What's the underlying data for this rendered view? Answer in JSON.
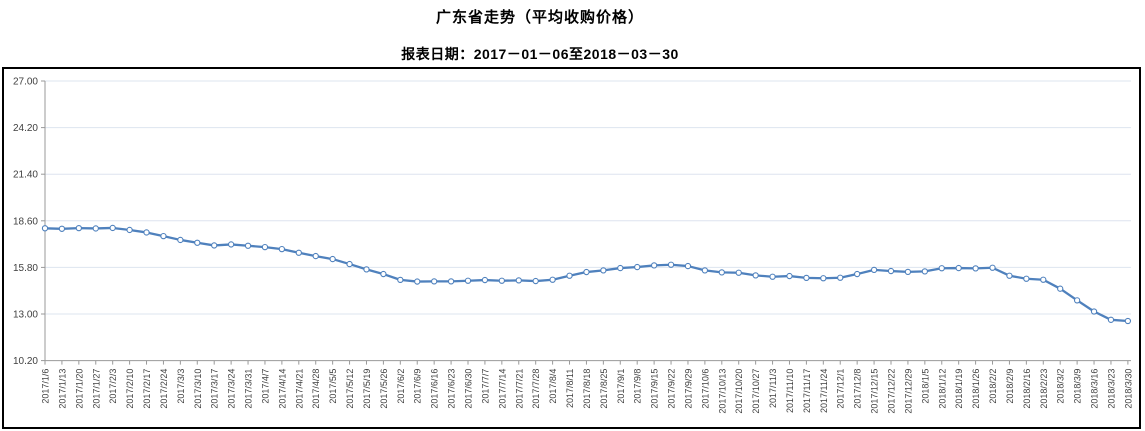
{
  "page": {
    "title": "广东省走势（平均收购价格）",
    "subtitle": "报表日期：2017－01－06至2018－03－30"
  },
  "chart_data": {
    "type": "line",
    "title": "广东省走势（平均收购价格）",
    "subtitle": "报表日期：2017－01－06至2018－03－30",
    "xlabel": "",
    "ylabel": "",
    "legend": "none",
    "grid": true,
    "ylim": [
      10.2,
      27.0
    ],
    "ytick_labels": [
      "27.00",
      "24.20",
      "21.40",
      "18.60",
      "15.80",
      "13.00",
      "10.20"
    ],
    "x": [
      "2017/1/6",
      "2017/1/13",
      "2017/1/20",
      "2017/1/27",
      "2017/2/3",
      "2017/2/10",
      "2017/2/17",
      "2017/2/24",
      "2017/3/3",
      "2017/3/10",
      "2017/3/17",
      "2017/3/24",
      "2017/3/31",
      "2017/4/7",
      "2017/4/14",
      "2017/4/21",
      "2017/4/28",
      "2017/5/5",
      "2017/5/12",
      "2017/5/19",
      "2017/5/26",
      "2017/6/2",
      "2017/6/9",
      "2017/6/16",
      "2017/6/23",
      "2017/6/30",
      "2017/7/7",
      "2017/7/14",
      "2017/7/21",
      "2017/7/28",
      "2017/8/4",
      "2017/8/11",
      "2017/8/18",
      "2017/8/25",
      "2017/9/1",
      "2017/9/8",
      "2017/9/15",
      "2017/9/22",
      "2017/9/29",
      "2017/10/6",
      "2017/10/13",
      "2017/10/20",
      "2017/10/27",
      "2017/11/3",
      "2017/11/10",
      "2017/11/17",
      "2017/11/24",
      "2017/12/1",
      "2017/12/8",
      "2017/12/15",
      "2017/12/22",
      "2017/12/29",
      "2018/1/5",
      "2018/1/12",
      "2018/1/19",
      "2018/1/26",
      "2018/2/2",
      "2018/2/9",
      "2018/2/16",
      "2018/2/23",
      "2018/3/2",
      "2018/3/9",
      "2018/3/16",
      "2018/3/23",
      "2018/3/30"
    ],
    "series": [
      {
        "name": "平均收购价格",
        "values": [
          18.15,
          18.12,
          18.16,
          18.14,
          18.17,
          18.05,
          17.9,
          17.68,
          17.45,
          17.28,
          17.12,
          17.18,
          17.1,
          17.02,
          16.9,
          16.68,
          16.48,
          16.3,
          16.0,
          15.68,
          15.4,
          15.05,
          14.95,
          14.96,
          14.96,
          15.0,
          15.04,
          15.0,
          15.02,
          14.98,
          15.06,
          15.3,
          15.52,
          15.62,
          15.76,
          15.82,
          15.92,
          15.96,
          15.88,
          15.62,
          15.5,
          15.48,
          15.32,
          15.24,
          15.28,
          15.17,
          15.15,
          15.18,
          15.4,
          15.65,
          15.58,
          15.53,
          15.56,
          15.75,
          15.76,
          15.74,
          15.78,
          15.3,
          15.12,
          15.06,
          14.52,
          13.82,
          13.15,
          12.65,
          12.58
        ]
      }
    ],
    "colors": {
      "line": "#4f81bd",
      "marker_fill": "#ffffff",
      "marker_stroke": "#4f81bd",
      "gridline": "#dde4ef",
      "axis": "#999999",
      "tick_text": "#3f3f3f",
      "frame_border": "#000000"
    }
  }
}
